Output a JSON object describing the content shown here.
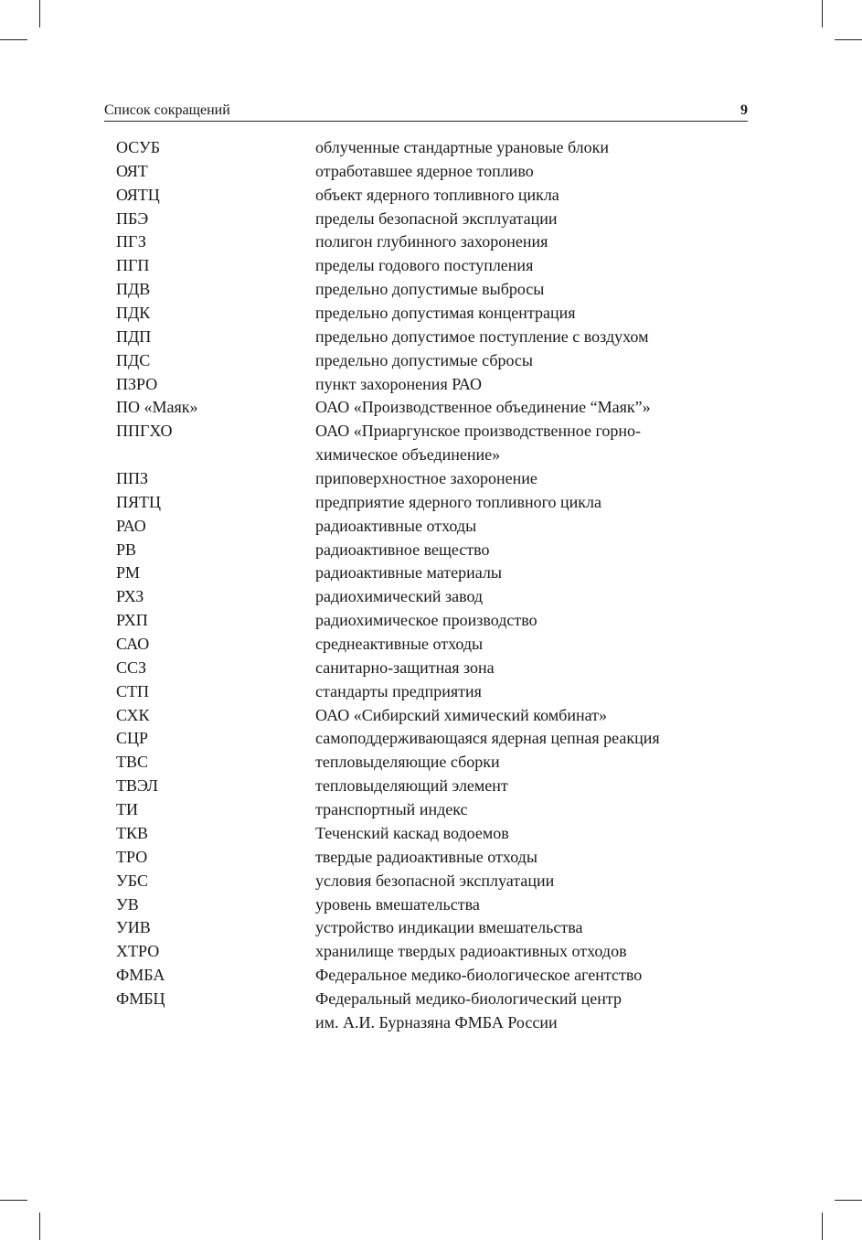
{
  "header": {
    "title": "Список сокращений",
    "page_number": "9"
  },
  "entries": [
    {
      "abbr": "ОСУБ",
      "definition": "облученные стандартные урановые блоки"
    },
    {
      "abbr": "ОЯТ",
      "definition": "отработавшее ядерное топливо"
    },
    {
      "abbr": "ОЯТЦ",
      "definition": "объект ядерного топливного цикла"
    },
    {
      "abbr": "ПБЭ",
      "definition": "пределы безопасной эксплуатации"
    },
    {
      "abbr": "ПГЗ",
      "definition": "полигон глубинного захоронения"
    },
    {
      "abbr": "ПГП",
      "definition": "пределы годового поступления"
    },
    {
      "abbr": "ПДВ",
      "definition": "предельно допустимые выбросы"
    },
    {
      "abbr": "ПДК",
      "definition": "предельно допустимая концентрация"
    },
    {
      "abbr": "ПДП",
      "definition": "предельно допустимое поступление с воздухом"
    },
    {
      "abbr": "ПДС",
      "definition": "предельно допустимые сбросы"
    },
    {
      "abbr": "ПЗРО",
      "definition": "пункт захоронения РАО"
    },
    {
      "abbr": "ПО «Маяк»",
      "definition": "ОАО «Производственное объединение “Маяк”»"
    },
    {
      "abbr": "ППГХО",
      "definition": "ОАО «Приаргунское производственное горно-\nхимическое объединение»"
    },
    {
      "abbr": "ППЗ",
      "definition": "приповерхностное захоронение"
    },
    {
      "abbr": "ПЯТЦ",
      "definition": "предприятие ядерного топливного цикла"
    },
    {
      "abbr": "РАО",
      "definition": "радиоактивные отходы"
    },
    {
      "abbr": "РВ",
      "definition": "радиоактивное вещество"
    },
    {
      "abbr": "РМ",
      "definition": "радиоактивные материалы"
    },
    {
      "abbr": "РХЗ",
      "definition": "радиохимический завод"
    },
    {
      "abbr": "РХП",
      "definition": "радиохимическое производство"
    },
    {
      "abbr": "САО",
      "definition": "среднеактивные отходы"
    },
    {
      "abbr": "ССЗ",
      "definition": "санитарно-защитная зона"
    },
    {
      "abbr": "СТП",
      "definition": "стандарты предприятия"
    },
    {
      "abbr": "СХК",
      "definition": "ОАО «Сибирский химический комбинат»"
    },
    {
      "abbr": "СЦР",
      "definition": "самоподдерживающаяся ядерная цепная реакция"
    },
    {
      "abbr": "ТВС",
      "definition": "тепловыделяющие сборки"
    },
    {
      "abbr": "ТВЭЛ",
      "definition": "тепловыделяющий элемент"
    },
    {
      "abbr": "ТИ",
      "definition": "транспортный индекс"
    },
    {
      "abbr": "ТКВ",
      "definition": "Теченский каскад водоемов"
    },
    {
      "abbr": "ТРО",
      "definition": "твердые радиоактивные отходы"
    },
    {
      "abbr": "УБС",
      "definition": "условия безопасной эксплуатации"
    },
    {
      "abbr": "УВ",
      "definition": "уровень вмешательства"
    },
    {
      "abbr": "УИВ",
      "definition": "устройство индикации вмешательства"
    },
    {
      "abbr": "ХТРО",
      "definition": "хранилище твердых радиоактивных отходов"
    },
    {
      "abbr": "ФМБА",
      "definition": "Федеральное медико-биологическое агентство"
    },
    {
      "abbr": "ФМБЦ",
      "definition": "Федеральный медико-биологический центр\nим. А.И. Бурназяна ФМБА России"
    }
  ]
}
